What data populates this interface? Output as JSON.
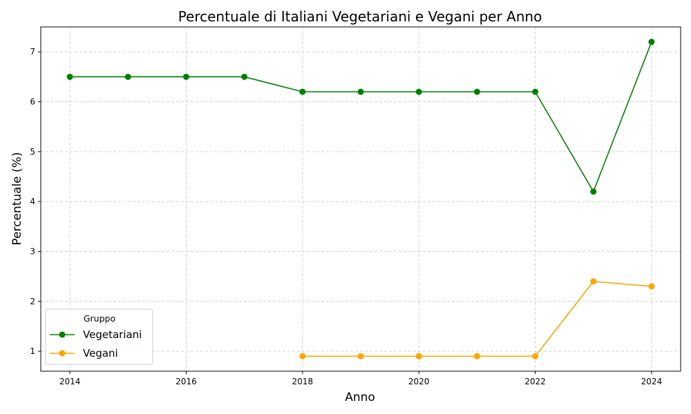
{
  "chart_data": {
    "type": "line",
    "title": "Percentuale di Italiani Vegetariani e Vegani per Anno",
    "xlabel": "Anno",
    "ylabel": "Percentuale (%)",
    "xlim": [
      2013.5,
      2024.5
    ],
    "ylim": [
      0.6,
      7.5
    ],
    "xticks": [
      2014,
      2016,
      2018,
      2020,
      2022,
      2024
    ],
    "yticks": [
      1,
      2,
      3,
      4,
      5,
      6,
      7
    ],
    "grid": true,
    "legend": {
      "title": "Gruppo",
      "placement": "lower-left"
    },
    "series": [
      {
        "name": "Vegetariani",
        "color": "#008000",
        "x": [
          2014,
          2015,
          2016,
          2017,
          2018,
          2019,
          2020,
          2021,
          2022,
          2023,
          2024
        ],
        "values": [
          6.5,
          6.5,
          6.5,
          6.5,
          6.2,
          6.2,
          6.2,
          6.2,
          6.2,
          4.2,
          7.2
        ]
      },
      {
        "name": "Vegani",
        "color": "#FFA500",
        "x": [
          2018,
          2019,
          2020,
          2021,
          2022,
          2023,
          2024
        ],
        "values": [
          0.9,
          0.9,
          0.9,
          0.9,
          0.9,
          2.4,
          2.3
        ]
      }
    ]
  }
}
